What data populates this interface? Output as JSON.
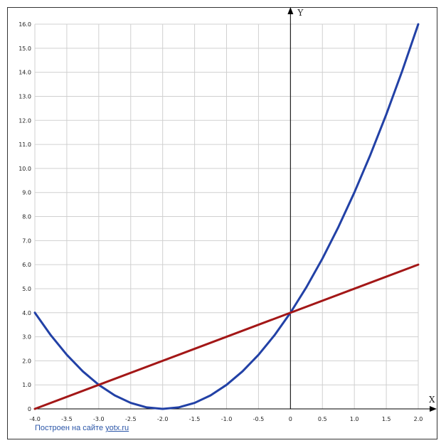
{
  "chart_data": {
    "type": "line",
    "title": "",
    "xlabel": "X",
    "ylabel": "Y",
    "xlim": [
      -4.0,
      2.0
    ],
    "ylim": [
      0,
      16.0
    ],
    "grid": true,
    "x_ticks": [
      -4.0,
      -3.5,
      -3.0,
      -2.5,
      -2.0,
      -1.5,
      -1.0,
      -0.5,
      0,
      0.5,
      1.0,
      1.5,
      2.0
    ],
    "x_tick_labels": [
      "-4.0",
      "-3.5",
      "-3.0",
      "-2.5",
      "-2.0",
      "-1.5",
      "-1.0",
      "-0.5",
      "0",
      "0.5",
      "1.0",
      "1.5",
      "2.0"
    ],
    "y_ticks": [
      0,
      1,
      2,
      3,
      4,
      5,
      6,
      7,
      8,
      9,
      10,
      11,
      12,
      13,
      14,
      15,
      16
    ],
    "y_tick_labels": [
      "0",
      "1.0",
      "2.0",
      "3.0",
      "4.0",
      "5.0",
      "6.0",
      "7.0",
      "8.0",
      "9.0",
      "10.0",
      "11.0",
      "12.0",
      "13.0",
      "14.0",
      "15.0",
      "16.0"
    ],
    "series": [
      {
        "color": "#2241a6",
        "x": [
          -4.0,
          -3.75,
          -3.5,
          -3.25,
          -3.0,
          -2.75,
          -2.5,
          -2.25,
          -2.0,
          -1.75,
          -1.5,
          -1.25,
          -1.0,
          -0.75,
          -0.5,
          -0.25,
          0,
          0.25,
          0.5,
          0.75,
          1.0,
          1.25,
          1.5,
          1.75,
          2.0
        ],
        "y": [
          4.0,
          3.0625,
          2.25,
          1.5625,
          1.0,
          0.5625,
          0.25,
          0.0625,
          0.0,
          0.0625,
          0.25,
          0.5625,
          1.0,
          1.5625,
          2.25,
          3.0625,
          4.0,
          5.0625,
          6.25,
          7.5625,
          9.0,
          10.5625,
          12.25,
          14.0625,
          16.0
        ]
      },
      {
        "color": "#a31717",
        "x": [
          -4.0,
          2.0
        ],
        "y": [
          0.0,
          6.0
        ]
      }
    ]
  },
  "credit": {
    "prefix": "Построен на сайте ",
    "link": "yotx.ru"
  }
}
